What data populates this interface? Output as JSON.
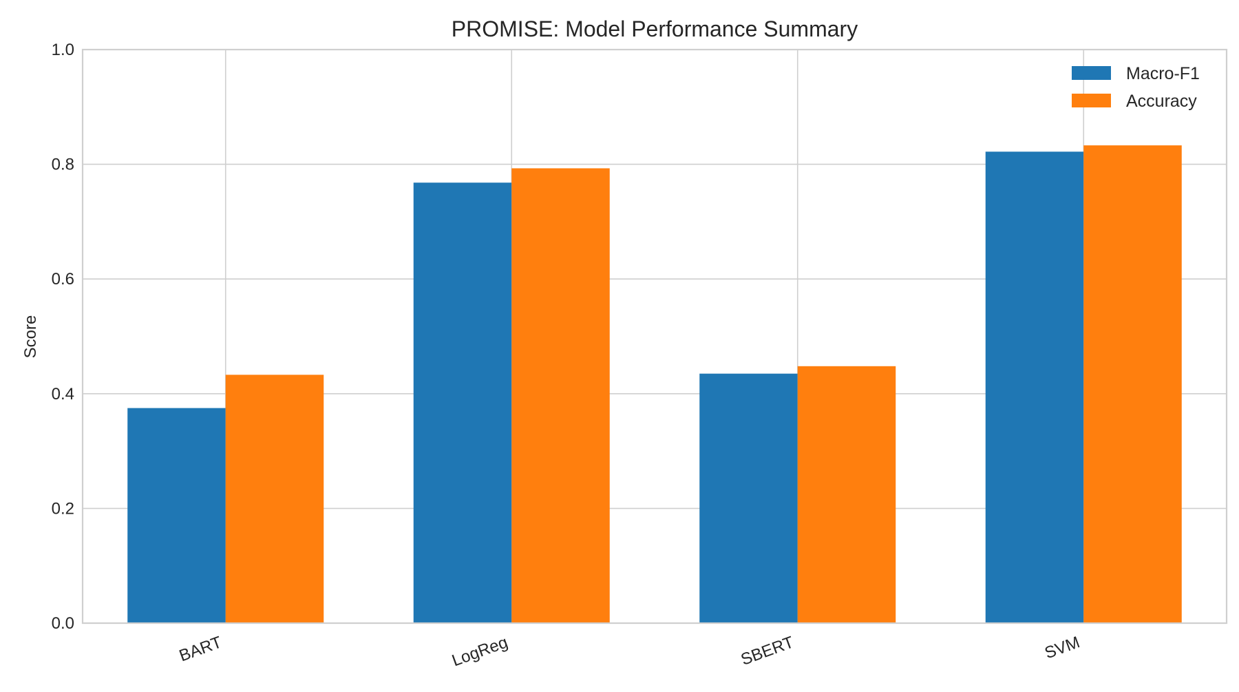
{
  "chart_data": {
    "type": "bar",
    "title": "PROMISE: Model Performance Summary",
    "xlabel": "",
    "ylabel": "Score",
    "ylim": [
      0,
      1.0
    ],
    "yticks": [
      "0.0",
      "0.2",
      "0.4",
      "0.6",
      "0.8",
      "1.0"
    ],
    "categories": [
      "BART",
      "LogReg",
      "SBERT",
      "SVM"
    ],
    "series": [
      {
        "name": "Macro-F1",
        "color": "#1f77b4",
        "values": [
          0.375,
          0.768,
          0.435,
          0.822
        ]
      },
      {
        "name": "Accuracy",
        "color": "#ff7f0e",
        "values": [
          0.433,
          0.793,
          0.448,
          0.833
        ]
      }
    ],
    "grid": true,
    "legend": "top-right"
  }
}
